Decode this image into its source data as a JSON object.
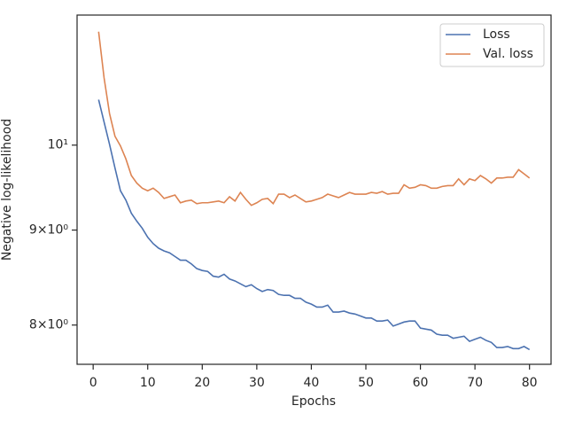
{
  "chart_data": {
    "type": "line",
    "xlabel": "Epochs",
    "ylabel": "Negative log-likelihood",
    "x": [
      1,
      2,
      3,
      4,
      5,
      6,
      7,
      8,
      9,
      10,
      11,
      12,
      13,
      14,
      15,
      16,
      17,
      18,
      19,
      20,
      21,
      22,
      23,
      24,
      25,
      26,
      27,
      28,
      29,
      30,
      31,
      32,
      33,
      34,
      35,
      36,
      37,
      38,
      39,
      40,
      41,
      42,
      43,
      44,
      45,
      46,
      47,
      48,
      49,
      50,
      51,
      52,
      53,
      54,
      55,
      56,
      57,
      58,
      59,
      60,
      61,
      62,
      63,
      64,
      65,
      66,
      67,
      68,
      69,
      70,
      71,
      72,
      73,
      74,
      75,
      76,
      77,
      78,
      79,
      80
    ],
    "series": [
      {
        "name": "Loss",
        "color": "#4c72b0",
        "values": [
          10.58,
          10.29,
          10.01,
          9.72,
          9.45,
          9.34,
          9.19,
          9.1,
          9.02,
          8.92,
          8.85,
          8.8,
          8.77,
          8.75,
          8.71,
          8.67,
          8.67,
          8.63,
          8.58,
          8.56,
          8.55,
          8.5,
          8.49,
          8.52,
          8.47,
          8.45,
          8.42,
          8.39,
          8.41,
          8.37,
          8.34,
          8.36,
          8.35,
          8.31,
          8.3,
          8.3,
          8.27,
          8.27,
          8.23,
          8.21,
          8.18,
          8.18,
          8.2,
          8.13,
          8.13,
          8.14,
          8.12,
          8.11,
          8.09,
          8.07,
          8.07,
          8.04,
          8.04,
          8.05,
          7.99,
          8.01,
          8.03,
          8.04,
          8.04,
          7.97,
          7.96,
          7.95,
          7.91,
          7.9,
          7.9,
          7.87,
          7.88,
          7.89,
          7.84,
          7.86,
          7.88,
          7.85,
          7.83,
          7.78,
          7.78,
          7.79,
          7.77,
          7.77,
          7.79,
          7.76
        ]
      },
      {
        "name": "Val. loss",
        "color": "#dd8452",
        "values": [
          11.51,
          10.87,
          10.4,
          10.11,
          9.99,
          9.83,
          9.63,
          9.54,
          9.48,
          9.45,
          9.48,
          9.43,
          9.36,
          9.38,
          9.4,
          9.31,
          9.33,
          9.34,
          9.3,
          9.31,
          9.31,
          9.32,
          9.33,
          9.31,
          9.38,
          9.33,
          9.43,
          9.35,
          9.28,
          9.31,
          9.35,
          9.36,
          9.3,
          9.41,
          9.41,
          9.37,
          9.4,
          9.36,
          9.32,
          9.33,
          9.35,
          9.37,
          9.41,
          9.39,
          9.37,
          9.4,
          9.43,
          9.41,
          9.41,
          9.41,
          9.43,
          9.42,
          9.44,
          9.41,
          9.42,
          9.42,
          9.52,
          9.48,
          9.49,
          9.52,
          9.51,
          9.48,
          9.48,
          9.5,
          9.51,
          9.51,
          9.59,
          9.52,
          9.59,
          9.57,
          9.63,
          9.59,
          9.54,
          9.6,
          9.6,
          9.61,
          9.61,
          9.7,
          9.65,
          9.6
        ]
      }
    ],
    "xlim": [
      -2.95,
      83.95
    ],
    "xticks": [
      0,
      10,
      20,
      30,
      40,
      50,
      60,
      70,
      80
    ],
    "ylim": [
      7.62,
      11.75
    ],
    "log_y": true,
    "yticks": [
      {
        "value": 8,
        "label": "8×10⁰"
      },
      {
        "value": 9,
        "label": "9×10⁰"
      },
      {
        "value": 10,
        "label": "10¹"
      }
    ],
    "legend": "upper right"
  }
}
